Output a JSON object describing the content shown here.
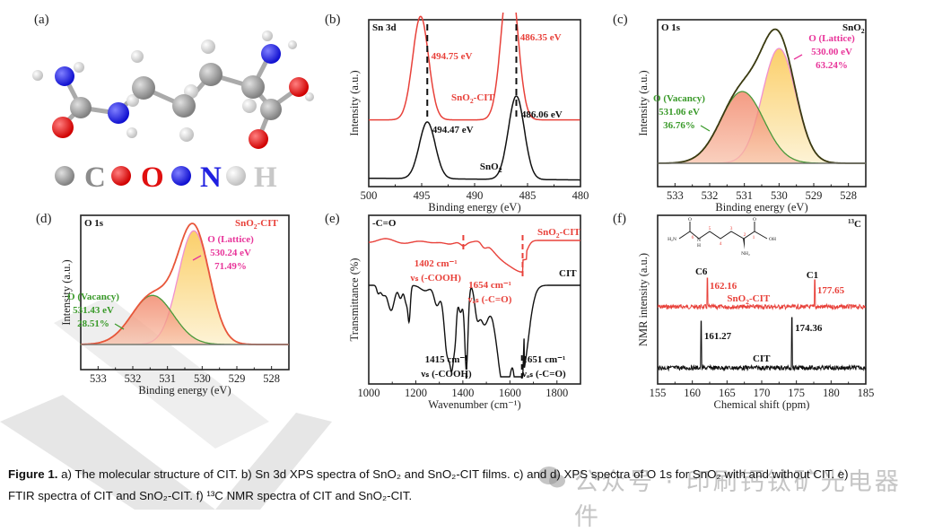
{
  "panels": {
    "a": {
      "label": "(a)",
      "legend": [
        {
          "symbol": "C",
          "color": "#8c8c8c",
          "atom": "carbon"
        },
        {
          "symbol": "O",
          "color": "#e01010",
          "atom": "oxygen"
        },
        {
          "symbol": "N",
          "color": "#2020e0",
          "atom": "nitrogen"
        },
        {
          "symbol": "H",
          "color": "#c8c8c8",
          "atom": "hydrogen"
        }
      ]
    },
    "b": {
      "label": "(b)"
    },
    "c": {
      "label": "(c)"
    },
    "d": {
      "label": "(d)"
    },
    "e": {
      "label": "(e)"
    },
    "f": {
      "label": "(f)",
      "structure_labels": [
        "O",
        "H₂N",
        "6",
        "N",
        "H",
        "5",
        "4",
        "3",
        "2",
        "1",
        "O",
        "OH",
        "NH₂"
      ]
    }
  },
  "colors": {
    "red": "#e8413a",
    "black": "#111111",
    "green": "#3a9a2a",
    "pink": "#e8359a",
    "lattice_fill": "#fcd98a",
    "vacancy_fill": "#f28a6a"
  },
  "chart_data": [
    {
      "id": "b",
      "type": "line",
      "title": "Sn 3d",
      "xlabel": "Binding energy (eV)",
      "ylabel": "Intensity (a.u.)",
      "xlim": [
        500,
        480
      ],
      "xticks": [
        500,
        495,
        490,
        485,
        480
      ],
      "series": [
        {
          "name": "SnO₂-CIT",
          "color": "#e8413a",
          "peaks": [
            494.75,
            486.35
          ],
          "peak_heights": [
            0.62,
            0.9
          ],
          "baseline": 0.4
        },
        {
          "name": "SnO₂",
          "color": "#111111",
          "peaks": [
            494.47,
            486.06
          ],
          "peak_heights": [
            0.34,
            0.5
          ],
          "baseline": 0.04
        }
      ],
      "annotations": [
        "494.75 eV",
        "486.35 eV",
        "494.47 eV",
        "486.06 eV"
      ],
      "series_labels": [
        "SnO₂-CIT",
        "SnO₂"
      ]
    },
    {
      "id": "c",
      "type": "area",
      "title": "O 1s",
      "sample": "SnO₂",
      "xlabel": "Binding energy (eV)",
      "ylabel": "Intensity (a.u.)",
      "xlim": [
        533.5,
        527.5
      ],
      "xticks": [
        533,
        532,
        531,
        530,
        529,
        528
      ],
      "components": [
        {
          "name": "O (Lattice)",
          "center": 530.0,
          "percent": 63.24,
          "energy_label": "530.00 eV",
          "percent_label": "63.24%"
        },
        {
          "name": "O (Vacancy)",
          "center": 531.06,
          "percent": 36.76,
          "energy_label": "531.06 eV",
          "percent_label": "36.76%"
        }
      ]
    },
    {
      "id": "d",
      "type": "area",
      "title": "O 1s",
      "sample": "SnO₂-CIT",
      "xlabel": "Binding energy (eV)",
      "ylabel": "Intensity (a.u.)",
      "xlim": [
        533.5,
        527.5
      ],
      "xticks": [
        533,
        532,
        531,
        530,
        529,
        528
      ],
      "components": [
        {
          "name": "O (Lattice)",
          "center": 530.24,
          "percent": 71.49,
          "energy_label": "530.24 eV",
          "percent_label": "71.49%"
        },
        {
          "name": "O (Vacancy)",
          "center": 531.43,
          "percent": 28.51,
          "energy_label": "531.43 eV",
          "percent_label": "28.51%"
        }
      ]
    },
    {
      "id": "e",
      "type": "line",
      "title": "-C=O",
      "xlabel": "Wavenumber (cm⁻¹)",
      "ylabel": "Transmittance (%)",
      "xlim": [
        1000,
        1900
      ],
      "xticks": [
        1000,
        1200,
        1400,
        1600,
        1800
      ],
      "series": [
        {
          "name": "SnO₂-CIT",
          "color": "#e8413a",
          "marks": [
            1402,
            1654
          ]
        },
        {
          "name": "CIT",
          "color": "#111111",
          "marks": [
            1415,
            1651
          ]
        }
      ],
      "annotations": [
        {
          "wavenumber": "1402 cm⁻¹",
          "mode": "νₛ (-COOH)"
        },
        {
          "wavenumber": "1654 cm⁻¹",
          "mode": "νₐₛ (-C=O)"
        },
        {
          "wavenumber": "1415 cm⁻¹",
          "mode": "νₛ (-COOH)"
        },
        {
          "wavenumber": "1651 cm⁻¹",
          "mode": "νₐₛ (-C=O)"
        }
      ]
    },
    {
      "id": "f",
      "type": "line",
      "title": "13C",
      "xlabel": "Chemical shift (ppm)",
      "ylabel": "NMR intensity (a.u.)",
      "xlim": [
        155,
        185
      ],
      "xticks": [
        155,
        160,
        165,
        170,
        175,
        180,
        185
      ],
      "series": [
        {
          "name": "SnO₂-CIT",
          "color": "#e8413a",
          "peaks": [
            162.16,
            177.65
          ],
          "peak_labels": [
            "162.16",
            "177.65"
          ],
          "assignments": [
            "C6",
            "C1"
          ]
        },
        {
          "name": "CIT",
          "color": "#111111",
          "peaks": [
            161.27,
            174.36
          ],
          "peak_labels": [
            "161.27",
            "174.36"
          ]
        }
      ]
    }
  ],
  "caption": {
    "bold": "Figure 1.",
    "line1": " a) The molecular structure of CIT. b) Sn 3d XPS spectra of SnO₂ and SnO₂-CIT films. c) and d) XPS spectra of O 1s for SnO₂ with and without CIT. e)",
    "line2": "FTIR spectra of CIT and SnO₂-CIT. f) ¹³C NMR spectra of CIT and SnO₂-CIT."
  },
  "watermark": "公众号 · 印刷钙钛矿光电器件"
}
